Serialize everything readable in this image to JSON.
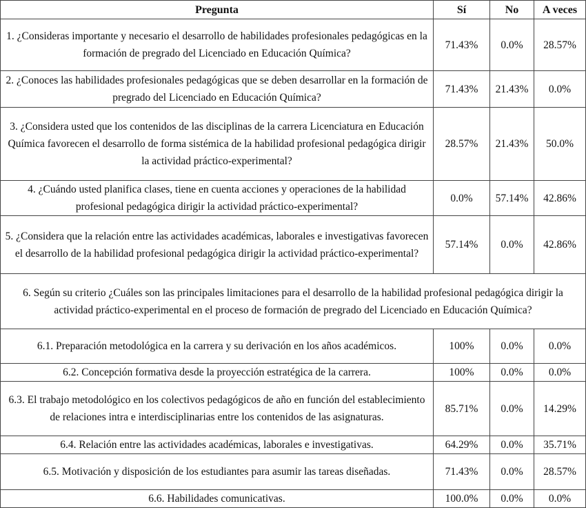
{
  "table": {
    "header": [
      "Pregunta",
      "Sí",
      "No",
      "A veces"
    ],
    "rows": [
      [
        "1. ¿Consideras importante y necesario el desarrollo de habilidades profesionales pedagógicas en la formación de pregrado del Licenciado en Educación Química?",
        "71.43%",
        "0.0%",
        "28.57%"
      ],
      [
        "2. ¿Conoces las habilidades profesionales pedagógicas que se deben desarrollar en la formación de pregrado del Licenciado en Educación Química?",
        "71.43%",
        "21.43%",
        "0.0%"
      ],
      [
        "3. ¿Considera usted que los contenidos de las disciplinas de la carrera Licenciatura en Educación Química favorecen el desarrollo de forma sistémica de la habilidad profesional pedagógica dirigir la actividad práctico-experimental?",
        "28.57%",
        "21.43%",
        "50.0%"
      ],
      [
        "4. ¿Cuándo usted planifica clases, tiene en cuenta acciones y operaciones de la habilidad profesional pedagógica dirigir la actividad práctico-experimental?",
        "0.0%",
        "57.14%",
        "42.86%"
      ],
      [
        "5. ¿Considera que la relación entre las actividades académicas, laborales e investigativas favorecen el desarrollo de la habilidad profesional pedagógica dirigir la actividad práctico-experimental?",
        "57.14%",
        "0.0%",
        "42.86%"
      ],
      [
        "6. Según su criterio ¿Cuáles son las principales limitaciones para el desarrollo de la habilidad profesional pedagógica dirigir la actividad práctico-experimental en el proceso de formación de pregrado del Licenciado en Educación Química?"
      ],
      [
        "6.1. Preparación metodológica en la carrera y su derivación en los años académicos.",
        "100%",
        "0.0%",
        "0.0%"
      ],
      [
        "6.2. Concepción formativa desde la proyección estratégica de la carrera.",
        "100%",
        "0.0%",
        "0.0%"
      ],
      [
        "6.3. El trabajo metodológico en los colectivos pedagógicos de año en función del establecimiento de relaciones intra e interdisciplinarias entre los contenidos de las asignaturas.",
        "85.71%",
        "0.0%",
        "14.29%"
      ],
      [
        "6.4. Relación entre las actividades académicas, laborales e investigativas.",
        "64.29%",
        "0.0%",
        "35.71%"
      ],
      [
        "6.5. Motivación y disposición de los estudiantes para asumir las tareas diseñadas.",
        "71.43%",
        "0.0%",
        "28.57%"
      ],
      [
        "6.6. Habilidades comunicativas.",
        "100.0%",
        "0.0%",
        "0.0%"
      ]
    ]
  }
}
